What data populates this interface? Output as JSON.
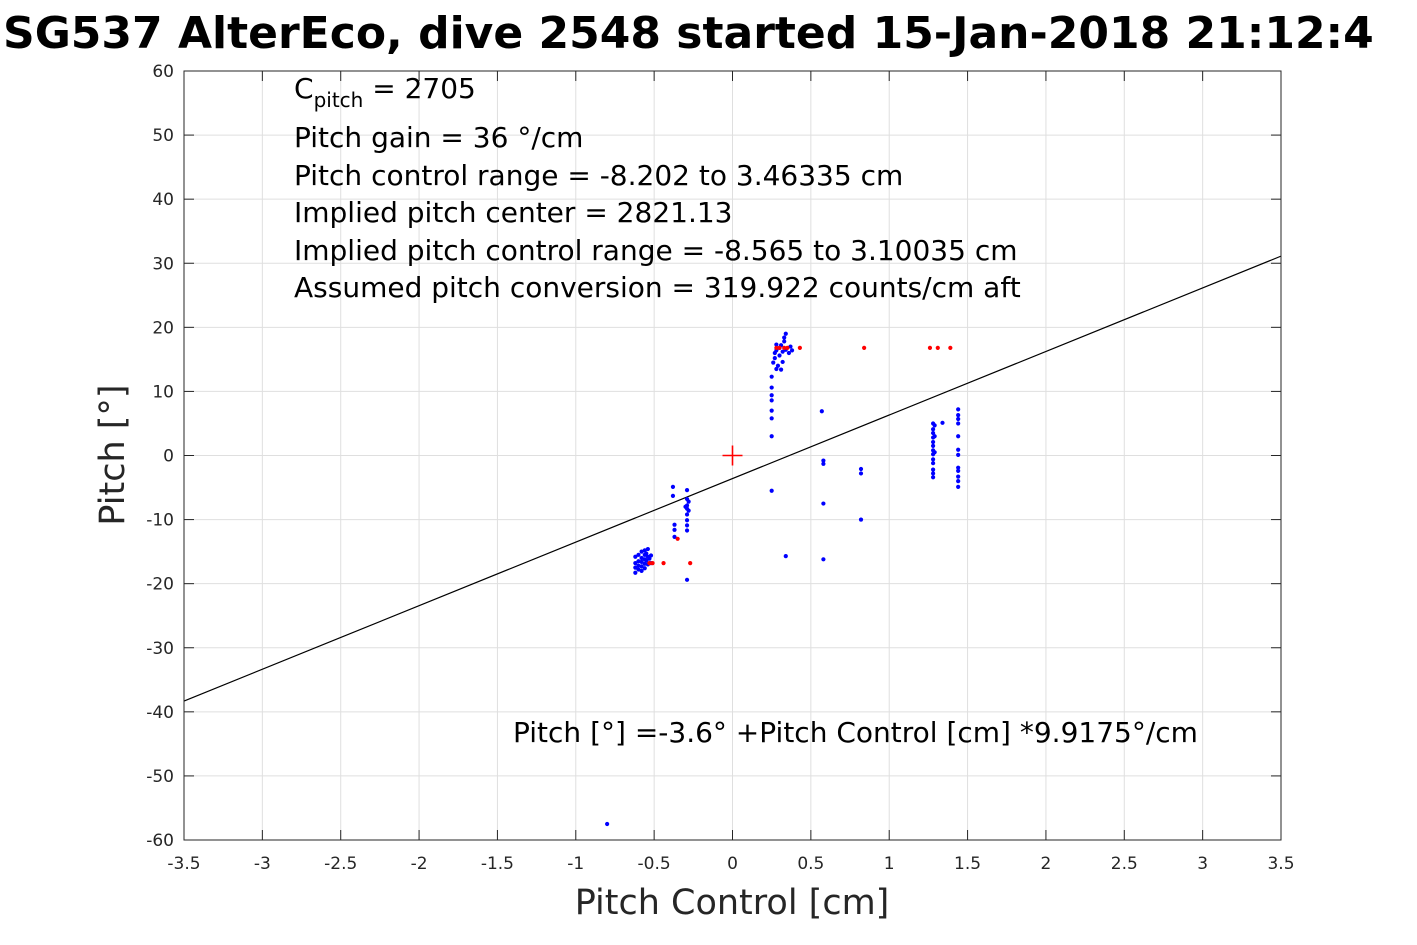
{
  "chart_data": {
    "type": "scatter",
    "title": "SG537 AlterEco, dive 2548 started 15-Jan-2018 21:12:4",
    "xlabel": "Pitch Control [cm]",
    "ylabel": "Pitch [°]",
    "xlim": [
      -3.5,
      3.5
    ],
    "ylim": [
      -60,
      60
    ],
    "x_ticks": [
      -3.5,
      -3,
      -2.5,
      -2,
      -1.5,
      -1,
      -0.5,
      0,
      0.5,
      1,
      1.5,
      2,
      2.5,
      3,
      3.5
    ],
    "y_ticks": [
      -60,
      -50,
      -40,
      -30,
      -20,
      -10,
      0,
      10,
      20,
      30,
      40,
      50,
      60
    ],
    "x_tick_labels": [
      "-3.5",
      "-3",
      "-2.5",
      "-2",
      "-1.5",
      "-1",
      "-0.5",
      "0",
      "0.5",
      "1",
      "1.5",
      "2",
      "2.5",
      "3",
      "3.5"
    ],
    "y_tick_labels": [
      "-60",
      "-50",
      "-40",
      "-30",
      "-20",
      "-10",
      "0",
      "10",
      "20",
      "30",
      "40",
      "50",
      "60"
    ],
    "grid": true,
    "colors": {
      "observed": "#0000ff",
      "excluded": "#ff0000",
      "fit": "#000000",
      "center_marker": "#ff0000",
      "grid": "#dfdfdf"
    },
    "annotations": {
      "c_pitch_prefix": "C",
      "c_pitch_sub": "pitch",
      "c_pitch_value": " = 2705",
      "lines": [
        "Pitch gain = 36 °/cm",
        "Pitch control range = -8.202 to 3.46335 cm",
        "Implied pitch center = 2821.13",
        "Implied pitch control range = -8.565 to 3.10035 cm",
        "Assumed pitch conversion = 319.922 counts/cm aft"
      ],
      "fit_equation": "Pitch [°] =-3.6° +Pitch Control [cm] *9.9175°/cm"
    },
    "fit": {
      "intercept": -3.6,
      "slope": 9.9175
    },
    "center_marker": {
      "x": 0,
      "y": 0
    },
    "series": [
      {
        "name": "",
        "color": "#0000ff",
        "points": [
          [
            -0.8,
            -57.5
          ],
          [
            -0.62,
            -15.8
          ],
          [
            -0.62,
            -16.8
          ],
          [
            -0.62,
            -17.5
          ],
          [
            -0.62,
            -18.3
          ],
          [
            -0.6,
            -15.5
          ],
          [
            -0.6,
            -16.5
          ],
          [
            -0.6,
            -17.2
          ],
          [
            -0.6,
            -17.8
          ],
          [
            -0.58,
            -15.0
          ],
          [
            -0.58,
            -16.0
          ],
          [
            -0.58,
            -16.6
          ],
          [
            -0.58,
            -17.3
          ],
          [
            -0.58,
            -18.0
          ],
          [
            -0.56,
            -14.8
          ],
          [
            -0.56,
            -15.5
          ],
          [
            -0.56,
            -16.2
          ],
          [
            -0.56,
            -16.9
          ],
          [
            -0.56,
            -17.6
          ],
          [
            -0.55,
            -15.3
          ],
          [
            -0.55,
            -16.4
          ],
          [
            -0.54,
            -14.6
          ],
          [
            -0.54,
            -15.8
          ],
          [
            -0.54,
            -17.0
          ],
          [
            -0.53,
            -16.1
          ],
          [
            -0.52,
            -15.6
          ],
          [
            -0.52,
            -16.8
          ],
          [
            -0.38,
            -4.9
          ],
          [
            -0.38,
            -6.3
          ],
          [
            -0.37,
            -10.8
          ],
          [
            -0.37,
            -11.6
          ],
          [
            -0.37,
            -12.7
          ],
          [
            -0.29,
            -5.4
          ],
          [
            -0.29,
            -6.8
          ],
          [
            -0.29,
            -7.8
          ],
          [
            -0.29,
            -8.3
          ],
          [
            -0.29,
            -9.2
          ],
          [
            -0.29,
            -10.1
          ],
          [
            -0.29,
            -10.9
          ],
          [
            -0.29,
            -11.7
          ],
          [
            -0.29,
            -19.4
          ],
          [
            -0.3,
            -8.0
          ],
          [
            -0.28,
            -7.2
          ],
          [
            -0.28,
            -8.6
          ],
          [
            0.25,
            3.0
          ],
          [
            0.25,
            5.8
          ],
          [
            0.25,
            7.0
          ],
          [
            0.25,
            8.6
          ],
          [
            0.25,
            9.4
          ],
          [
            0.25,
            10.6
          ],
          [
            0.25,
            12.3
          ],
          [
            0.25,
            -5.5
          ],
          [
            0.26,
            14.5
          ],
          [
            0.27,
            15.2
          ],
          [
            0.27,
            16.0
          ],
          [
            0.28,
            13.5
          ],
          [
            0.28,
            16.4
          ],
          [
            0.28,
            17.3
          ],
          [
            0.29,
            14.0
          ],
          [
            0.3,
            15.6
          ],
          [
            0.3,
            16.8
          ],
          [
            0.31,
            13.4
          ],
          [
            0.31,
            17.2
          ],
          [
            0.32,
            14.6
          ],
          [
            0.32,
            16.2
          ],
          [
            0.33,
            17.8
          ],
          [
            0.33,
            18.4
          ],
          [
            0.34,
            19.0
          ],
          [
            0.34,
            16.5
          ],
          [
            0.34,
            -15.7
          ],
          [
            0.36,
            16.0
          ],
          [
            0.37,
            17.0
          ],
          [
            0.38,
            16.4
          ],
          [
            0.57,
            6.9
          ],
          [
            0.58,
            -0.8
          ],
          [
            0.58,
            -1.3
          ],
          [
            0.58,
            -7.5
          ],
          [
            0.58,
            -16.2
          ],
          [
            0.82,
            -2.1
          ],
          [
            0.82,
            -2.8
          ],
          [
            0.82,
            -10.0
          ],
          [
            1.28,
            5.0
          ],
          [
            1.28,
            4.1
          ],
          [
            1.28,
            3.5
          ],
          [
            1.28,
            2.8
          ],
          [
            1.28,
            2.1
          ],
          [
            1.28,
            1.5
          ],
          [
            1.28,
            0.8
          ],
          [
            1.28,
            0.2
          ],
          [
            1.28,
            -0.6
          ],
          [
            1.28,
            -1.2
          ],
          [
            1.28,
            -2.2
          ],
          [
            1.28,
            -2.8
          ],
          [
            1.28,
            -3.4
          ],
          [
            1.29,
            4.7
          ],
          [
            1.29,
            3.0
          ],
          [
            1.29,
            0.5
          ],
          [
            1.34,
            5.1
          ],
          [
            1.44,
            7.2
          ],
          [
            1.44,
            6.3
          ],
          [
            1.44,
            5.7
          ],
          [
            1.44,
            5.0
          ],
          [
            1.44,
            3.0
          ],
          [
            1.44,
            0.9
          ],
          [
            1.44,
            0.1
          ],
          [
            1.44,
            -1.9
          ],
          [
            1.44,
            -2.4
          ],
          [
            1.44,
            -3.3
          ],
          [
            1.44,
            -4.0
          ],
          [
            1.44,
            -4.9
          ]
        ]
      },
      {
        "name": "",
        "color": "#ff0000",
        "points": [
          [
            -0.53,
            -16.8
          ],
          [
            -0.51,
            -16.8
          ],
          [
            -0.44,
            -16.8
          ],
          [
            -0.35,
            -13.0
          ],
          [
            -0.27,
            -16.8
          ],
          [
            0.28,
            16.8
          ],
          [
            0.3,
            16.8
          ],
          [
            0.33,
            16.8
          ],
          [
            0.35,
            16.8
          ],
          [
            0.43,
            16.8
          ],
          [
            0.84,
            16.8
          ],
          [
            1.26,
            16.8
          ],
          [
            1.31,
            16.8
          ],
          [
            1.39,
            16.8
          ]
        ]
      }
    ]
  }
}
